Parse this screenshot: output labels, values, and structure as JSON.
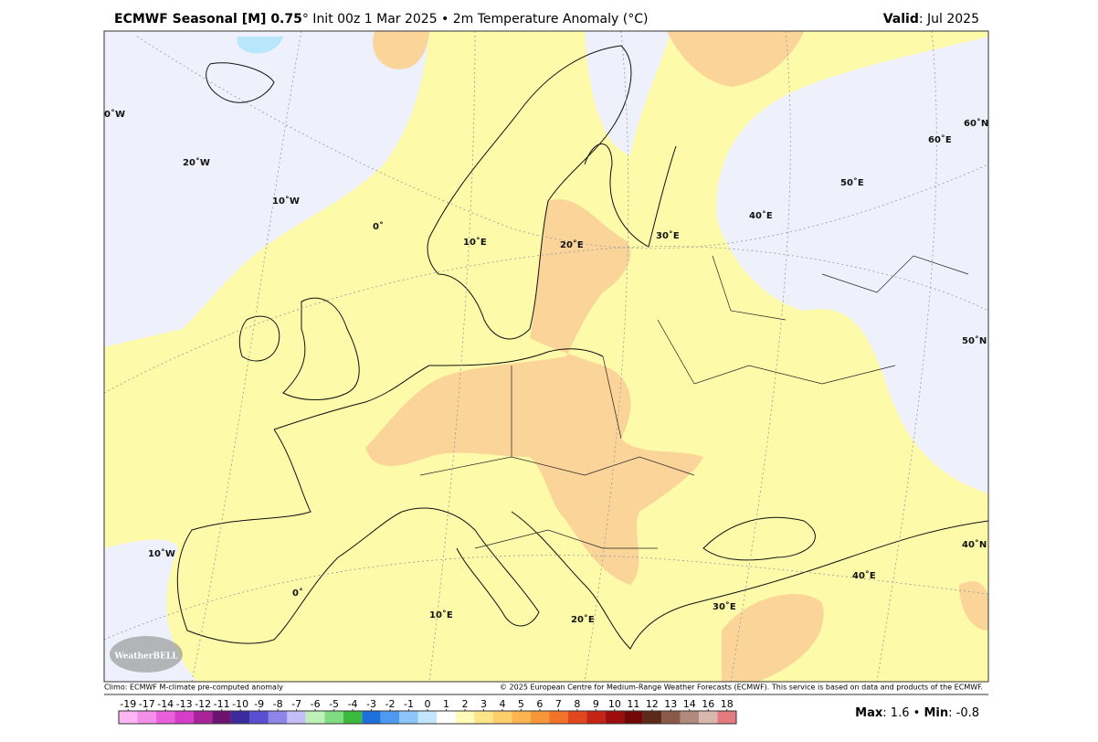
{
  "header": {
    "title_bold": "ECMWF Seasonal [M] 0.75",
    "title_rest": "° Init 00z 1 Mar 2025 • 2m Temperature Anomaly (°C)",
    "valid_label": "Valid",
    "valid_value": ": Jul 2025"
  },
  "map": {
    "graticule_labels": [
      "0˚W",
      "20˚W",
      "10˚W",
      "0˚",
      "10˚E",
      "20˚E",
      "30˚E",
      "40˚E",
      "50˚E",
      "60˚E",
      "60˚N",
      "50˚N",
      "40˚N",
      "40˚E",
      "30˚E",
      "20˚E",
      "10˚E",
      "0˚",
      "10˚W"
    ],
    "logo": "WeatherBELL"
  },
  "footer": {
    "climo": "Climo: ECMWF M-climate pre-computed anomaly",
    "copyright": "© 2025 European Centre for Medium-Range Weather Forecasts (ECMWF). This service is based on data and products of the ECMWF."
  },
  "colorbar": {
    "ticks": [
      -19,
      -17,
      -14,
      -13,
      -12,
      -11,
      -10,
      -9,
      -8,
      -7,
      -6,
      -5,
      -4,
      -3,
      -2,
      -1,
      0,
      1,
      2,
      3,
      4,
      5,
      6,
      7,
      8,
      9,
      10,
      11,
      12,
      13,
      14,
      16,
      18
    ],
    "colors": [
      "#fbb6f3",
      "#f48fe9",
      "#ea5fdc",
      "#d63ec9",
      "#a8249a",
      "#6c1470",
      "#3b2b9c",
      "#5a4fd0",
      "#8e84ea",
      "#c3bff6",
      "#bff0b8",
      "#80dc80",
      "#3cba3c",
      "#1f6fd8",
      "#4f98f0",
      "#8cc6f8",
      "#c4e6fc",
      "#ffffff",
      "#fffbb8",
      "#fde58a",
      "#fccf6b",
      "#fbb450",
      "#f79638",
      "#f07328",
      "#e0471c",
      "#c42414",
      "#9c0e0c",
      "#700808",
      "#5c2a18",
      "#8a5a48",
      "#b08a7c",
      "#d8b8ae",
      "#e27a80"
    ]
  },
  "stats": {
    "max_label": "Max",
    "max": 1.6,
    "separator": "•",
    "min_label": "Min",
    "min": -0.8,
    "colon": ":"
  }
}
